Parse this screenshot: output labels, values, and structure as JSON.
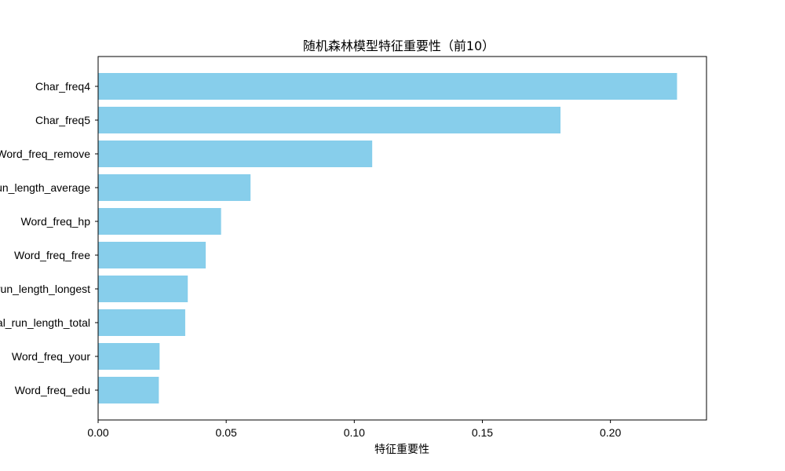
{
  "chart_data": {
    "type": "bar",
    "orientation": "horizontal",
    "title": "随机森林模型特征重要性（前10）",
    "xlabel": "特征重要性",
    "ylabel": "",
    "xlim": [
      0,
      0.2375
    ],
    "xticks": [
      0.0,
      0.05,
      0.1,
      0.15,
      0.2
    ],
    "xtick_labels": [
      "0.00",
      "0.05",
      "0.10",
      "0.15",
      "0.20"
    ],
    "categories": [
      "Char_freq4",
      "Char_freq5",
      "Word_freq_remove",
      "Capital_run_length_average",
      "Word_freq_hp",
      "Word_freq_free",
      "Capital_run_length_longest",
      "Capital_run_length_total",
      "Word_freq_your",
      "Word_freq_edu"
    ],
    "values": [
      0.226,
      0.1805,
      0.107,
      0.0595,
      0.048,
      0.042,
      0.035,
      0.034,
      0.024,
      0.0237
    ],
    "bar_color": "#87CEEB",
    "grid": false,
    "legend": "none"
  }
}
